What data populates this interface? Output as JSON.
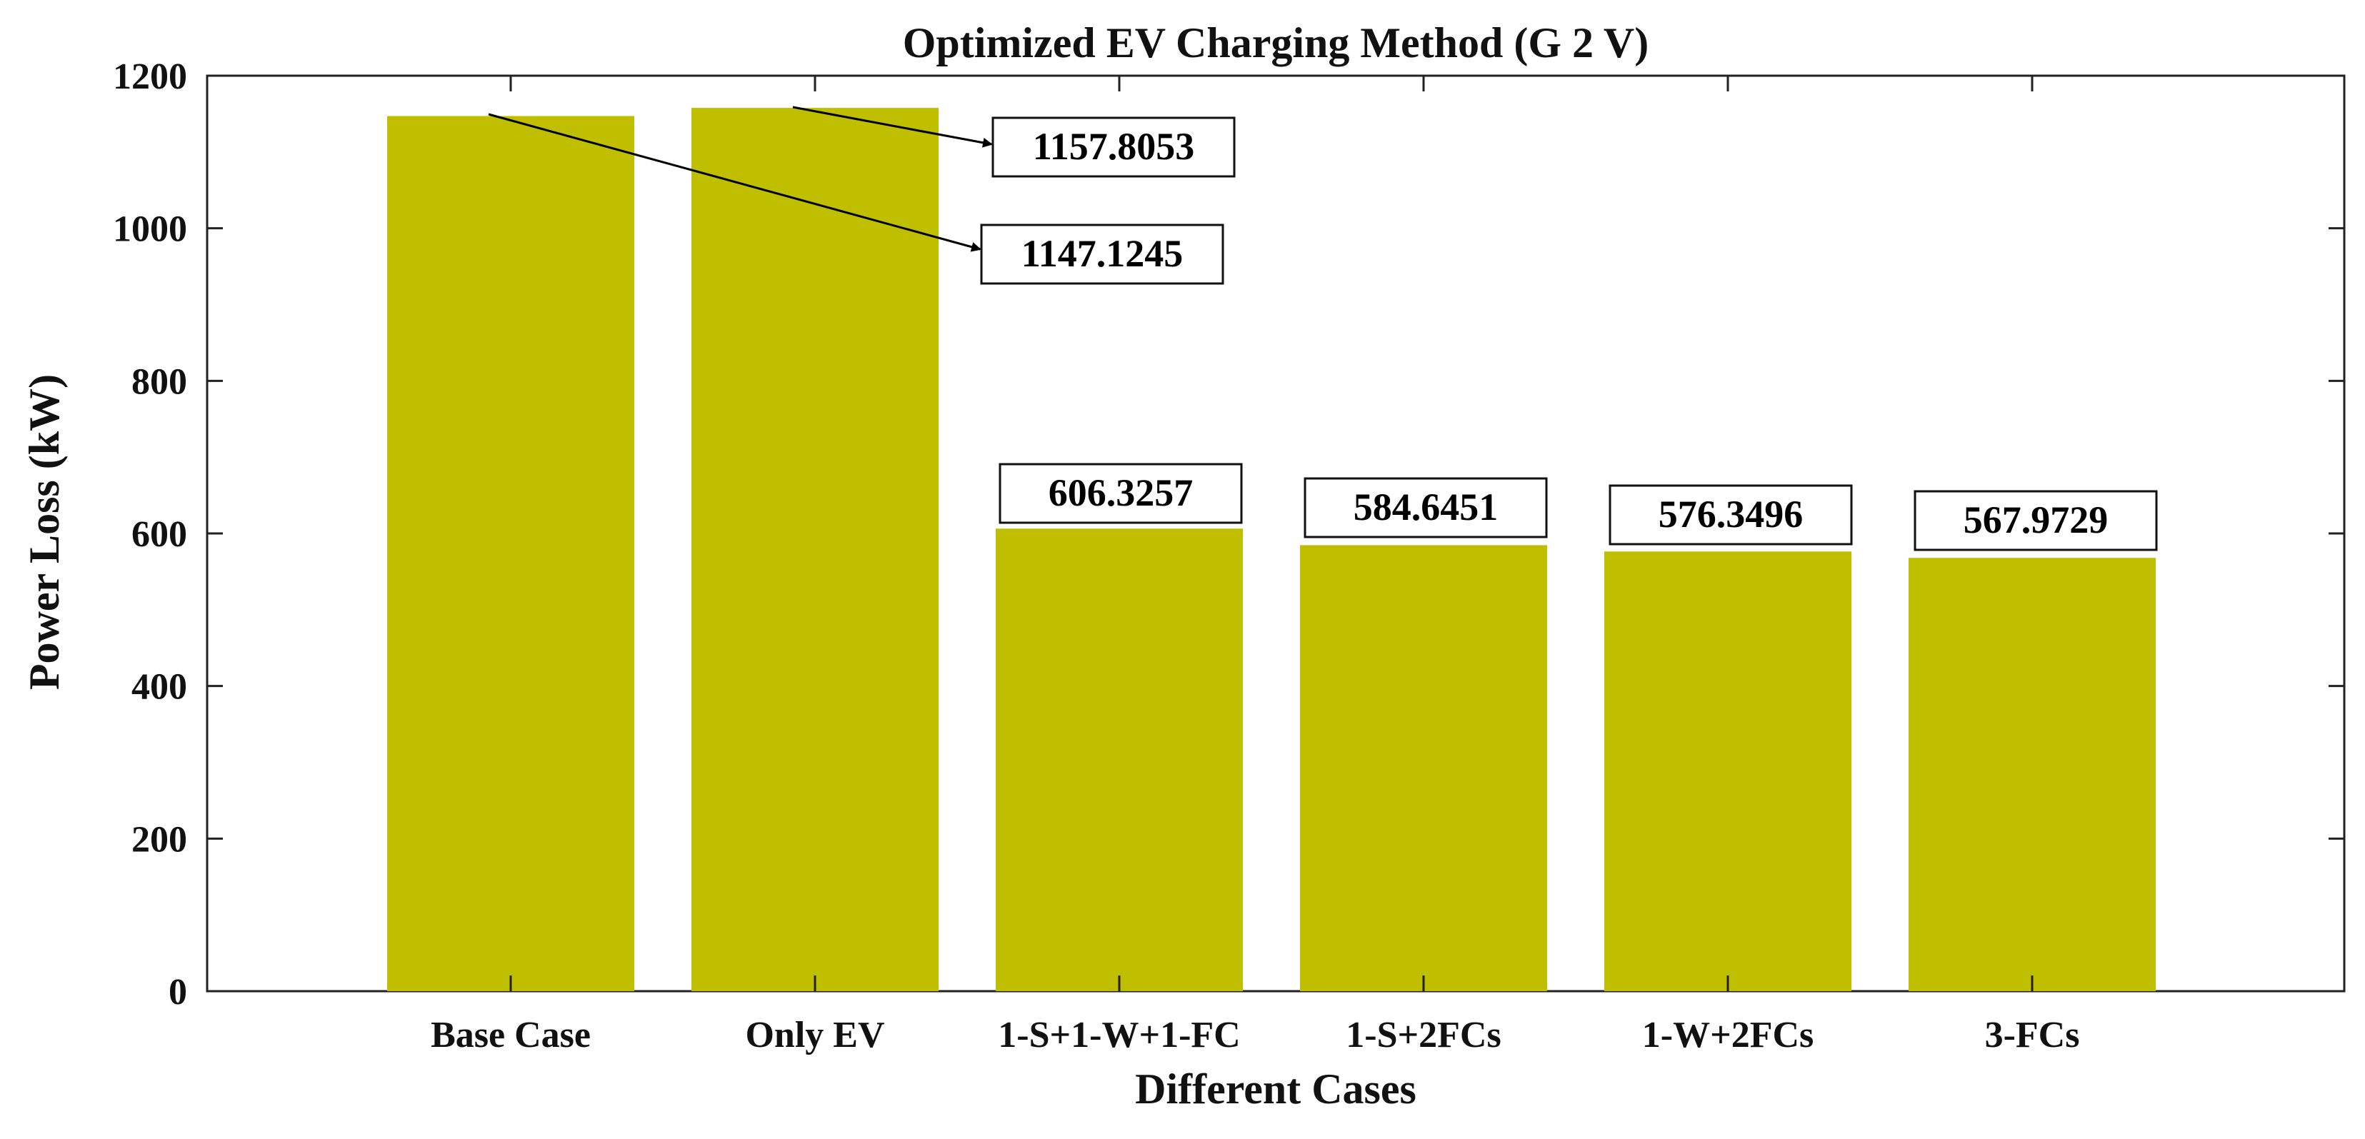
{
  "chart_data": {
    "type": "bar",
    "title": "Optimized EV Charging Method (G 2 V)",
    "xlabel": "Different Cases",
    "ylabel": "Power Loss (kW)",
    "categories": [
      "Base Case",
      "Only EV",
      "1-S+1-W+1-FC",
      "1-S+2FCs",
      "1-W+2FCs",
      "3-FCs"
    ],
    "values": [
      1147.1245,
      1157.8053,
      606.3257,
      584.6451,
      576.3496,
      567.9729
    ],
    "data_labels": [
      "1147.1245",
      "1157.8053",
      "606.3257",
      "584.6451",
      "576.3496",
      "567.9729"
    ],
    "ylim": [
      0,
      1200
    ],
    "yticks": [
      0,
      200,
      400,
      600,
      800,
      1000,
      1200
    ],
    "grid": false,
    "bar_color": "#BFBF00",
    "axis_color": "#222222"
  }
}
